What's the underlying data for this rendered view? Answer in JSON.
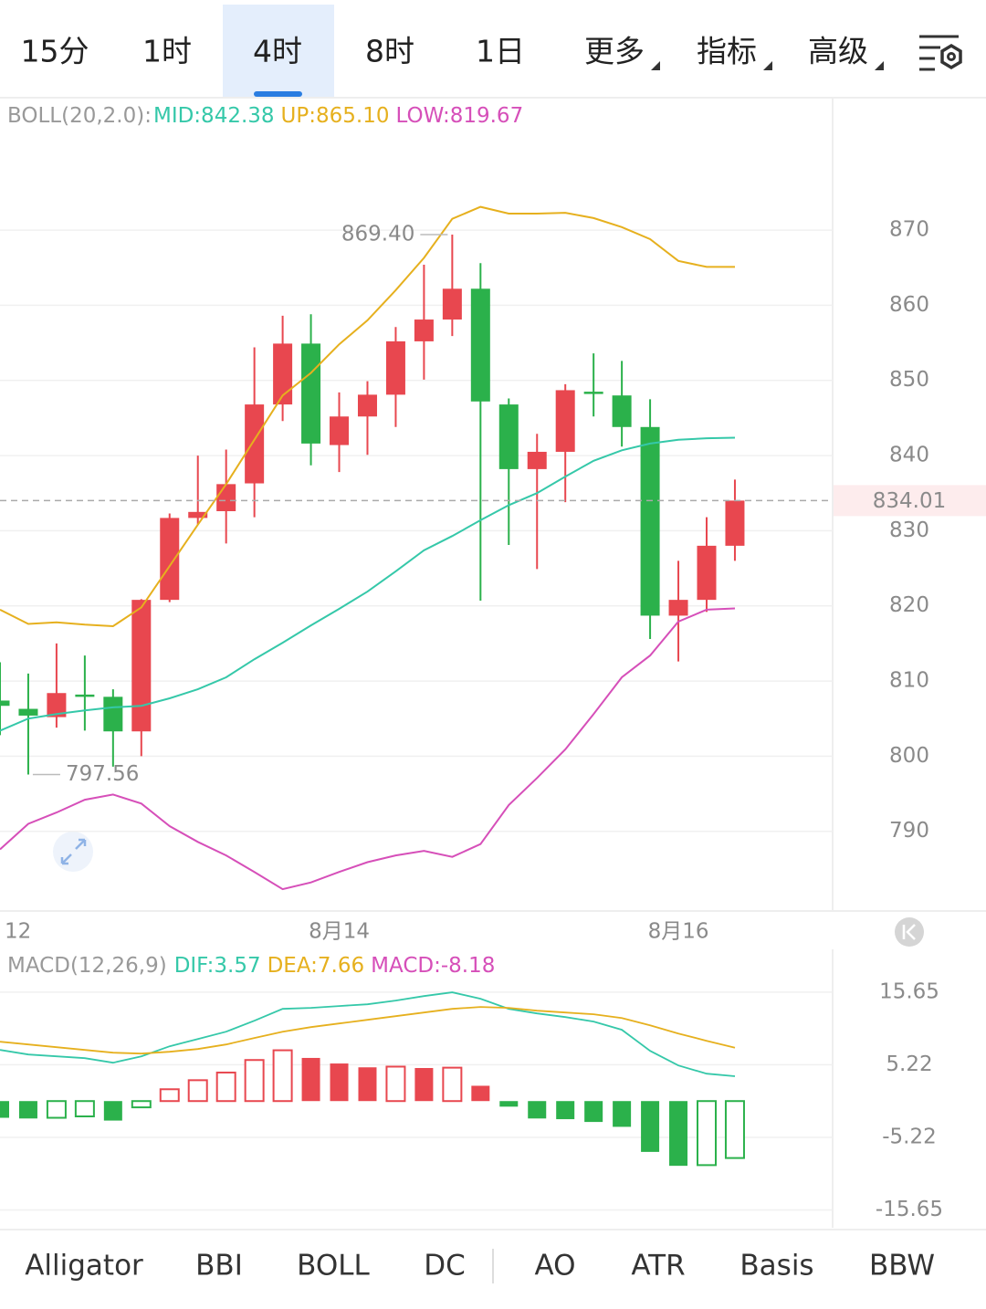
{
  "tabs": {
    "items": [
      "15分",
      "1时",
      "4时",
      "8时",
      "1日"
    ],
    "dropdowns": [
      "更多",
      "指标",
      "高级"
    ],
    "selected_index": 2
  },
  "chart_data": [
    {
      "type": "candlestick",
      "indicator": "BOLL(20,2.0):",
      "categories": [
        "12",
        null,
        null,
        null,
        null,
        null,
        null,
        null,
        null,
        null,
        null,
        null,
        "8月14",
        null,
        null,
        null,
        null,
        null,
        null,
        null,
        null,
        null,
        null,
        null,
        "8月16",
        null,
        null
      ],
      "open": [
        807.4,
        806.3,
        805.2,
        808.2,
        807.9,
        803.3,
        820.8,
        831.7,
        832.6,
        836.3,
        846.8,
        854.9,
        841.4,
        845.2,
        848.1,
        855.2,
        858.1,
        862.2,
        846.8,
        838.2,
        840.5,
        848.5,
        848.0,
        843.8,
        818.7,
        820.8,
        828.0
      ],
      "high": [
        812.5,
        811.0,
        815.0,
        813.4,
        808.9,
        820.9,
        832.3,
        840.0,
        840.8,
        854.4,
        858.6,
        858.8,
        848.4,
        849.9,
        857.1,
        865.4,
        869.4,
        865.6,
        847.6,
        842.9,
        849.5,
        853.6,
        852.6,
        847.5,
        826.0,
        831.8,
        836.8
      ],
      "low": [
        802.8,
        797.56,
        803.8,
        803.4,
        798.6,
        800.0,
        820.5,
        830.8,
        828.3,
        831.8,
        844.6,
        838.7,
        837.8,
        840.1,
        843.8,
        850.1,
        855.9,
        820.7,
        828.1,
        824.9,
        833.8,
        845.2,
        841.2,
        815.6,
        812.6,
        819.2,
        826.0
      ],
      "close": [
        806.7,
        805.4,
        808.4,
        808.0,
        803.3,
        820.8,
        831.7,
        832.5,
        836.2,
        846.8,
        854.9,
        841.6,
        845.2,
        848.1,
        855.2,
        858.1,
        862.2,
        847.2,
        838.2,
        840.5,
        848.7,
        848.3,
        843.8,
        818.7,
        820.8,
        828.0,
        834.01
      ],
      "up_color": "#e8474f",
      "down_color": "#2bb14b",
      "series": [
        {
          "name": "MID:842.38",
          "color": "#35c8a9",
          "values": [
            803.4,
            805.0,
            805.6,
            806.1,
            806.5,
            806.7,
            807.7,
            808.9,
            810.5,
            812.9,
            815.1,
            817.4,
            819.6,
            821.9,
            824.6,
            827.4,
            829.3,
            831.4,
            833.4,
            835.0,
            837.2,
            839.3,
            840.7,
            841.6,
            842.1,
            842.3,
            842.38
          ]
        },
        {
          "name": "UP:865.10",
          "color": "#e6b01e",
          "values": [
            819.5,
            817.6,
            817.8,
            817.5,
            817.3,
            819.8,
            825.3,
            830.8,
            836.2,
            842.1,
            848.0,
            851.0,
            854.8,
            858.0,
            862.0,
            866.3,
            871.5,
            873.1,
            872.2,
            872.2,
            872.3,
            871.6,
            870.4,
            868.8,
            865.9,
            865.1,
            865.1
          ]
        },
        {
          "name": "LOW:819.67",
          "color": "#d64fb9",
          "values": [
            787.6,
            791.0,
            792.5,
            794.2,
            794.9,
            793.7,
            790.7,
            788.6,
            786.8,
            784.6,
            782.3,
            783.2,
            784.6,
            785.9,
            786.8,
            787.4,
            786.6,
            788.3,
            793.5,
            797.1,
            800.9,
            805.6,
            810.5,
            813.4,
            817.9,
            819.5,
            819.67
          ]
        }
      ],
      "annotations": [
        {
          "value": 869.4,
          "label": "869.40"
        },
        {
          "value": 797.56,
          "label": "797.56"
        }
      ],
      "last_price": 834.01,
      "ylim": [
        779.4,
        887.5
      ],
      "yticks": [
        790,
        800,
        810,
        820,
        830,
        840,
        850,
        860,
        870
      ],
      "grid": true
    },
    {
      "type": "macd",
      "indicator": "MACD(12,26,9)",
      "histogram": {
        "name": "MACD:-8.18",
        "color": "#d64fb9",
        "up_color": "#e8474f",
        "down_color": "#2bb14b",
        "values": [
          -2.4,
          -2.5,
          -2.4,
          -2.2,
          -2.8,
          -0.9,
          1.7,
          3.0,
          4.1,
          5.9,
          7.3,
          6.2,
          5.4,
          4.85,
          4.95,
          4.75,
          4.8,
          2.2,
          -0.8,
          -2.5,
          -2.6,
          -3.0,
          -3.7,
          -7.3,
          -9.3,
          -9.2,
          -8.18
        ]
      },
      "series": [
        {
          "name": "DIF:3.57",
          "color": "#35c8a9",
          "values": [
            7.35,
            6.69,
            6.43,
            6.17,
            5.51,
            6.43,
            7.87,
            8.92,
            9.97,
            11.55,
            13.25,
            13.39,
            13.65,
            13.91,
            14.44,
            15.09,
            15.62,
            14.7,
            13.25,
            12.6,
            12.07,
            11.42,
            10.24,
            7.22,
            5.12,
            3.94,
            3.57
          ]
        },
        {
          "name": "DEA:7.66",
          "color": "#e6b01e",
          "values": [
            8.53,
            8.14,
            7.74,
            7.35,
            6.96,
            6.82,
            7.09,
            7.48,
            8.14,
            9.06,
            9.97,
            10.63,
            11.15,
            11.68,
            12.2,
            12.73,
            13.25,
            13.52,
            13.39,
            12.99,
            12.73,
            12.47,
            11.94,
            10.89,
            9.71,
            8.66,
            7.66
          ]
        }
      ],
      "ylim": [
        -18.2,
        21.8
      ],
      "yticks": [
        -15.65,
        -5.22,
        5.22,
        15.65
      ],
      "grid": true
    }
  ],
  "indicator_tabs": {
    "items": [
      "Alligator",
      "BBI",
      "BOLL",
      "DC",
      "AO",
      "ATR",
      "Basis",
      "BBW"
    ],
    "selected_index": 2
  }
}
